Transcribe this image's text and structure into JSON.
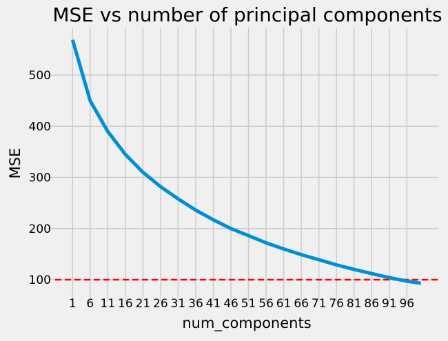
{
  "chart_data": {
    "type": "line",
    "title": "MSE vs number of principal components",
    "xlabel": "num_components",
    "ylabel": "MSE",
    "xlim": [
      -3.95,
      104.95
    ],
    "ylim": [
      69,
      593
    ],
    "xticks": [
      1,
      6,
      11,
      16,
      21,
      26,
      31,
      36,
      41,
      46,
      51,
      56,
      61,
      66,
      71,
      76,
      81,
      86,
      91,
      96
    ],
    "yticks": [
      100,
      200,
      300,
      400,
      500
    ],
    "grid": true,
    "series": [
      {
        "color": "#008fd5",
        "x": [
          1,
          6,
          11,
          16,
          21,
          26,
          31,
          36,
          41,
          46,
          51,
          56,
          61,
          66,
          71,
          76,
          81,
          86,
          91,
          96,
          100
        ],
        "y": [
          569,
          450,
          390,
          345,
          310,
          282,
          258,
          236,
          217,
          200,
          186,
          172,
          160,
          149,
          139,
          129,
          120,
          112,
          104,
          97,
          93
        ]
      }
    ],
    "hline": {
      "y": 100,
      "color": "#ff0000",
      "style": "dashed"
    }
  }
}
